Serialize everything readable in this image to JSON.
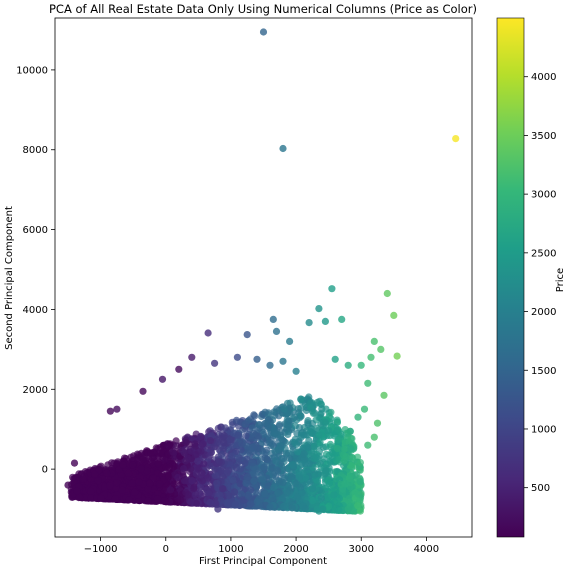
{
  "chart_data": {
    "type": "scatter",
    "title": "PCA of All Real Estate Data Only Using Numerical Columns (Price as Color)",
    "xlabel": "First Principal Component",
    "ylabel": "Second Principal Component",
    "colorbar_label": "Price",
    "xlim": [
      -1700,
      4700
    ],
    "ylim": [
      -1700,
      11300
    ],
    "xticks": [
      -1000,
      0,
      1000,
      2000,
      3000,
      4000
    ],
    "xtick_labels": [
      "−1000",
      "0",
      "1000",
      "2000",
      "3000",
      "4000"
    ],
    "yticks": [
      0,
      2000,
      4000,
      6000,
      8000,
      10000
    ],
    "ytick_labels": [
      "0",
      "2000",
      "4000",
      "6000",
      "8000",
      "10000"
    ],
    "color_range": [
      80,
      4500
    ],
    "colorbar_ticks": [
      500,
      1000,
      1500,
      2000,
      2500,
      3000,
      3500,
      4000
    ],
    "colormap": [
      "#440154",
      "#482878",
      "#3e4989",
      "#31688e",
      "#26828e",
      "#1f9e89",
      "#35b779",
      "#6ece58",
      "#b5de2b",
      "#fde725"
    ],
    "grid": false,
    "points": [
      {
        "x": 1500,
        "y": 10950,
        "price": 1500
      },
      {
        "x": 1800,
        "y": 8030,
        "price": 1800
      },
      {
        "x": 4450,
        "y": 8280,
        "price": 4450
      },
      {
        "x": 2550,
        "y": 4520,
        "price": 2550
      },
      {
        "x": 3400,
        "y": 4400,
        "price": 3400
      },
      {
        "x": 3500,
        "y": 3850,
        "price": 3500
      },
      {
        "x": 3550,
        "y": 2830,
        "price": 3550
      },
      {
        "x": 2350,
        "y": 4020,
        "price": 2350
      },
      {
        "x": 2450,
        "y": 3700,
        "price": 2450
      },
      {
        "x": 2700,
        "y": 3750,
        "price": 2700
      },
      {
        "x": 1650,
        "y": 3750,
        "price": 1650
      },
      {
        "x": 2200,
        "y": 3670,
        "price": 2200
      },
      {
        "x": 1700,
        "y": 3450,
        "price": 1700
      },
      {
        "x": 650,
        "y": 3410,
        "price": 650
      },
      {
        "x": 1250,
        "y": 3370,
        "price": 1250
      },
      {
        "x": 1900,
        "y": 3200,
        "price": 1900
      },
      {
        "x": 3200,
        "y": 3200,
        "price": 3200
      },
      {
        "x": 3300,
        "y": 3000,
        "price": 3300
      },
      {
        "x": 3150,
        "y": 2800,
        "price": 3150
      },
      {
        "x": 3000,
        "y": 2600,
        "price": 3000
      },
      {
        "x": 2800,
        "y": 2600,
        "price": 2800
      },
      {
        "x": 2600,
        "y": 2750,
        "price": 2600
      },
      {
        "x": 3100,
        "y": 2150,
        "price": 3100
      },
      {
        "x": 3350,
        "y": 1850,
        "price": 3350
      },
      {
        "x": 3050,
        "y": 1500,
        "price": 3050
      },
      {
        "x": 2950,
        "y": 1300,
        "price": 2950
      },
      {
        "x": 3250,
        "y": 1150,
        "price": 3250
      },
      {
        "x": 3200,
        "y": 800,
        "price": 3200
      },
      {
        "x": 3100,
        "y": 600,
        "price": 3100
      },
      {
        "x": 2000,
        "y": 2450,
        "price": 2000
      },
      {
        "x": 1600,
        "y": 2600,
        "price": 1600
      },
      {
        "x": 1400,
        "y": 2750,
        "price": 1400
      },
      {
        "x": 1100,
        "y": 2800,
        "price": 1100
      },
      {
        "x": 750,
        "y": 2650,
        "price": 750
      },
      {
        "x": 400,
        "y": 2800,
        "price": 400
      },
      {
        "x": 1800,
        "y": 2700,
        "price": 1800
      },
      {
        "x": 200,
        "y": 2500,
        "price": 200
      },
      {
        "x": -50,
        "y": 2250,
        "price": 350
      },
      {
        "x": -350,
        "y": 1950,
        "price": 150
      },
      {
        "x": -850,
        "y": 1450,
        "price": 150
      },
      {
        "x": -750,
        "y": 1500,
        "price": 200
      },
      {
        "x": -1400,
        "y": 150,
        "price": 100
      },
      {
        "x": -1500,
        "y": -400,
        "price": 100
      },
      {
        "x": 800,
        "y": -1000,
        "price": 800
      },
      {
        "x": 2350,
        "y": -1050,
        "price": 2350
      },
      {
        "x": 2800,
        "y": -1000,
        "price": 2800
      },
      {
        "x": 1600,
        "y": -950,
        "price": 1600
      }
    ]
  }
}
